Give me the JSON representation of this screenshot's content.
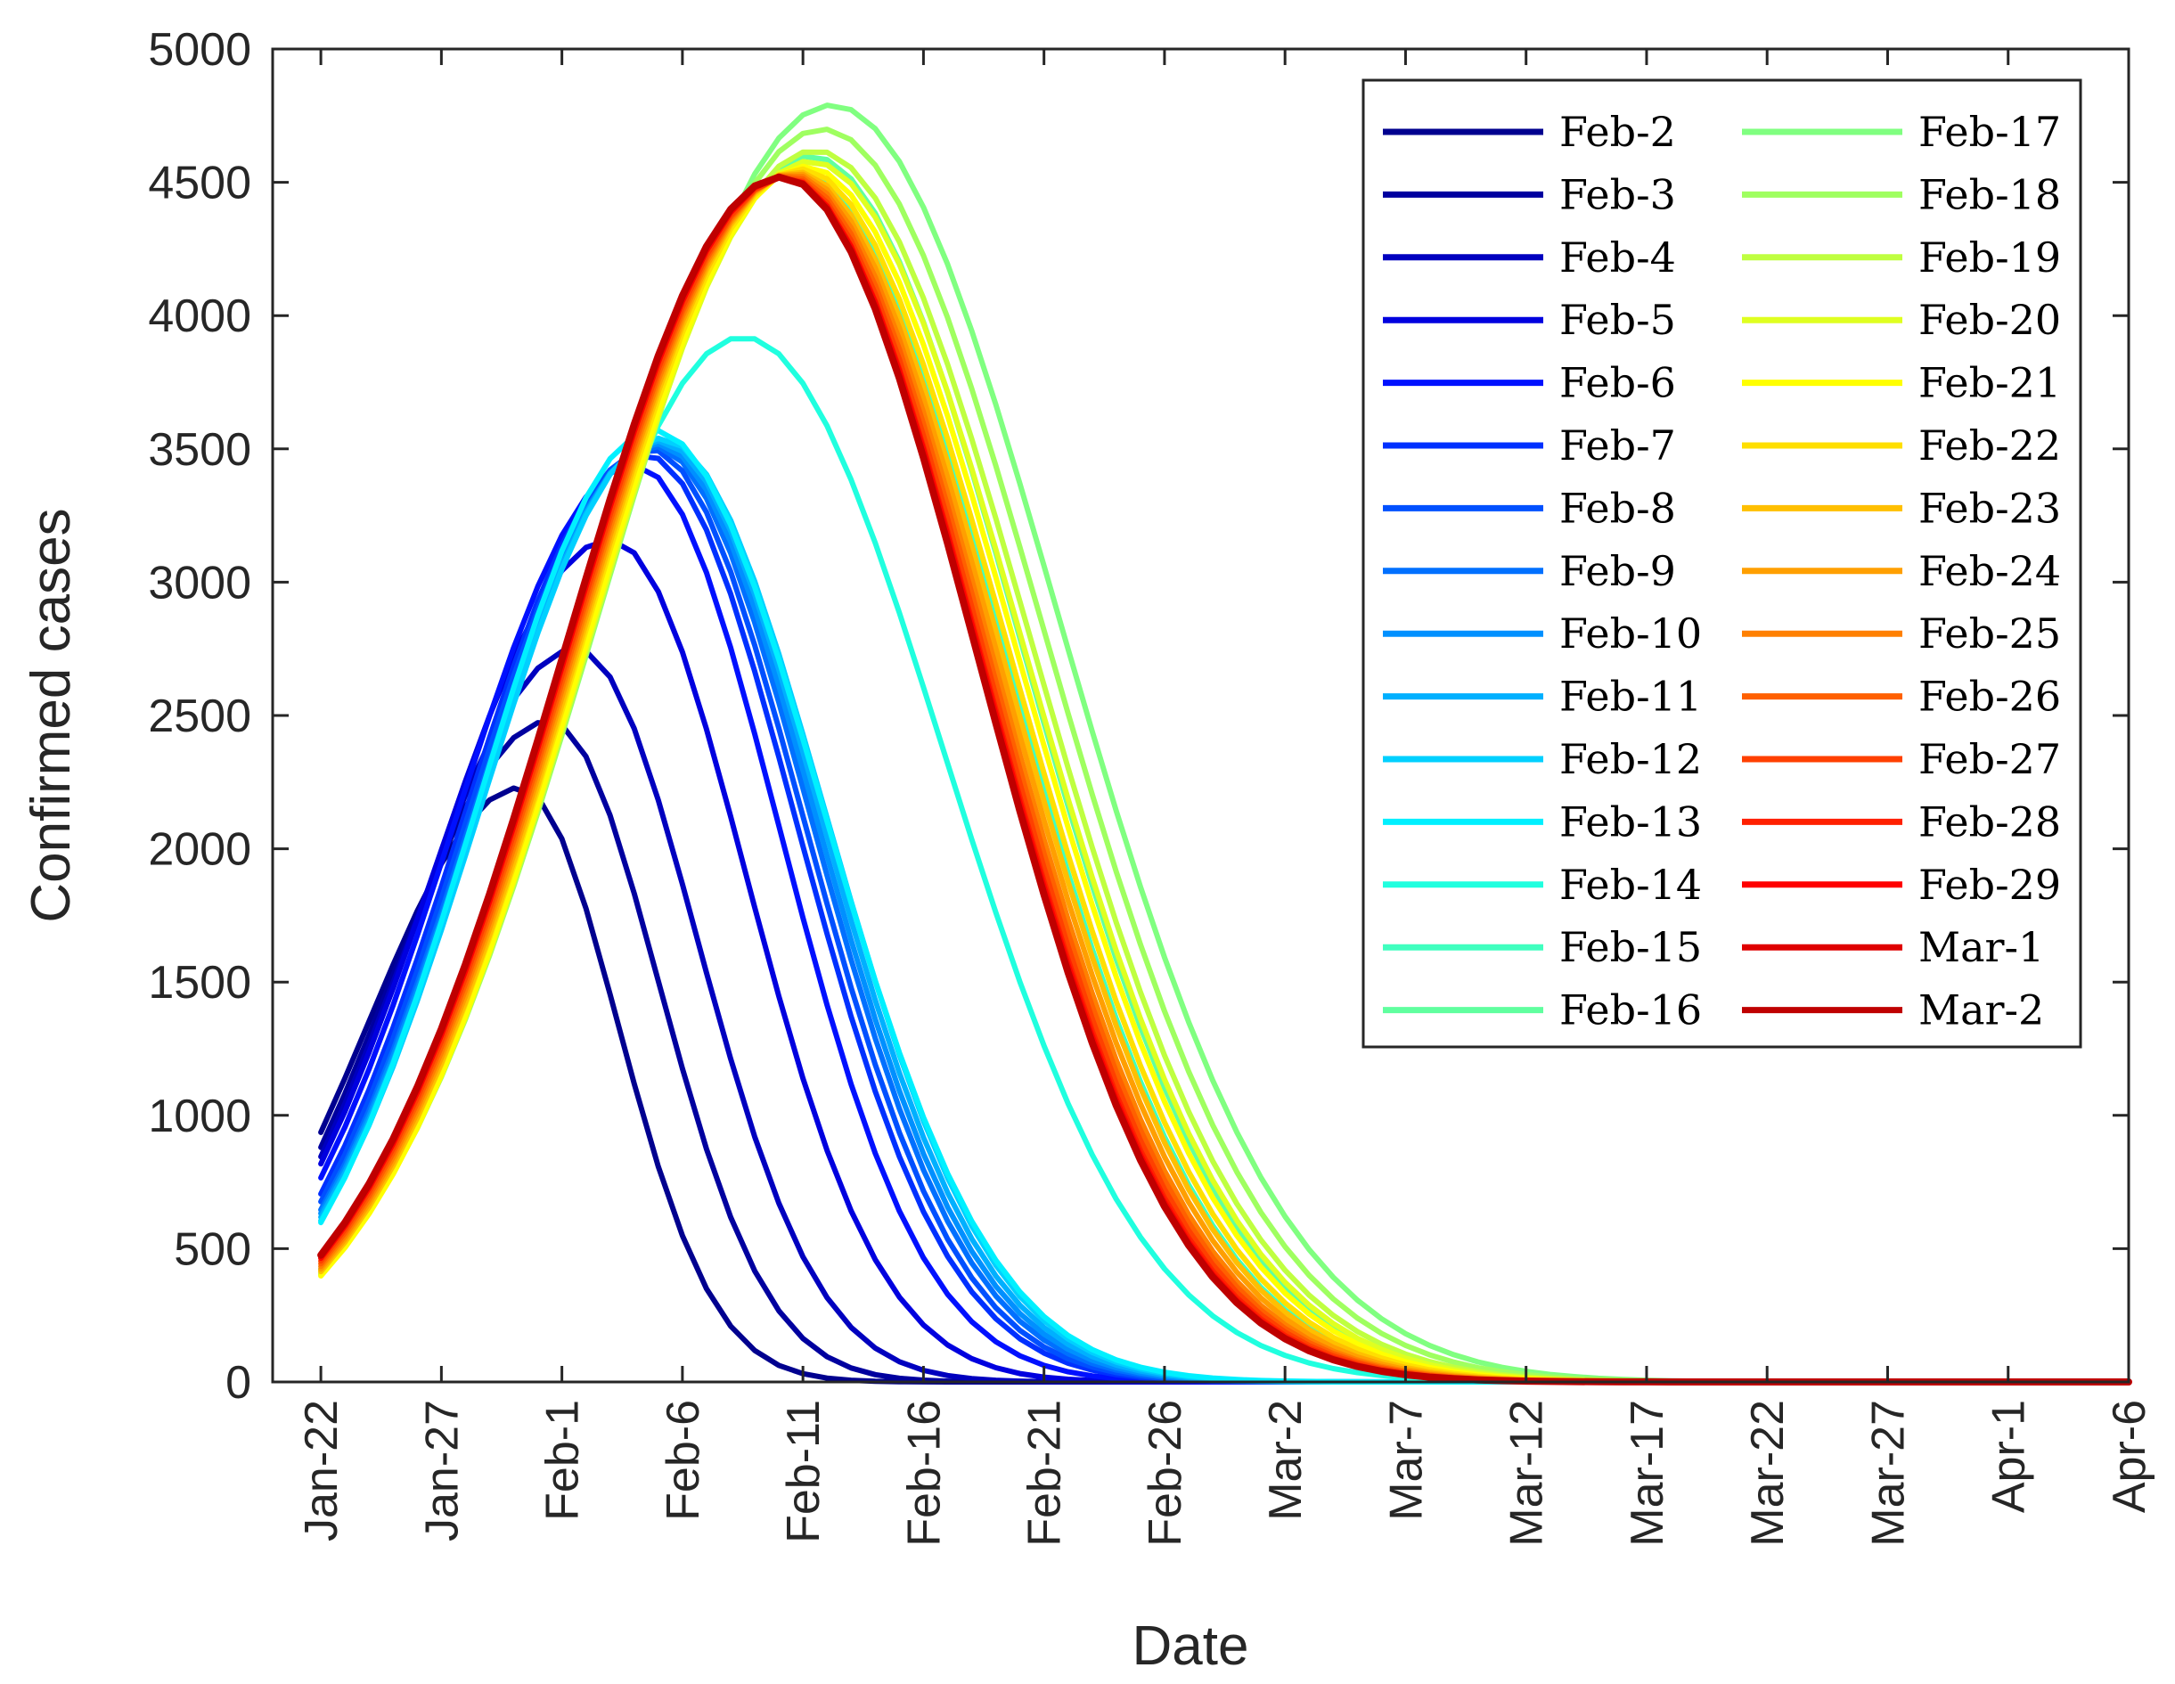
{
  "chart_data": {
    "type": "line",
    "title": "",
    "xlabel": "Date",
    "ylabel": "Confirmed cases",
    "x_start_label": "Jan-22",
    "x_days": 75,
    "xlim": [
      -2,
      75
    ],
    "ylim": [
      0,
      5000
    ],
    "grid": false,
    "legend_position": "top-right",
    "x_tick_days": [
      0,
      5,
      10,
      15,
      20,
      25,
      30,
      35,
      40,
      45,
      50,
      55,
      60,
      65,
      70,
      75
    ],
    "x_tick_labels": [
      "Jan-22",
      "Jan-27",
      "Feb-1",
      "Feb-6",
      "Feb-11",
      "Feb-16",
      "Feb-21",
      "Feb-26",
      "Mar-2",
      "Mar-7",
      "Mar-12",
      "Mar-17",
      "Mar-22",
      "Mar-27",
      "Apr-1",
      "Apr-6"
    ],
    "y_ticks": [
      0,
      500,
      1000,
      1500,
      2000,
      2500,
      3000,
      3500,
      4000,
      4500,
      5000
    ],
    "series": [
      {
        "name": "Feb-2",
        "color": "#00008f",
        "peak_day": 8.3,
        "peak_value": 2230,
        "width_left": 6.3,
        "width_right": 4.0
      },
      {
        "name": "Feb-3",
        "color": "#00009f",
        "peak_day": 9.5,
        "peak_value": 2480,
        "width_left": 6.6,
        "width_right": 4.5
      },
      {
        "name": "Feb-4",
        "color": "#0000bf",
        "peak_day": 10.6,
        "peak_value": 2750,
        "width_left": 6.9,
        "width_right": 5.0
      },
      {
        "name": "Feb-5",
        "color": "#0000df",
        "peak_day": 12.0,
        "peak_value": 3160,
        "width_left": 7.3,
        "width_right": 5.6
      },
      {
        "name": "Feb-6",
        "color": "#0010ff",
        "peak_day": 13.0,
        "peak_value": 3440,
        "width_left": 7.5,
        "width_right": 6.0
      },
      {
        "name": "Feb-7",
        "color": "#0030ff",
        "peak_day": 13.4,
        "peak_value": 3480,
        "width_left": 7.5,
        "width_right": 6.3
      },
      {
        "name": "Feb-8",
        "color": "#0050ff",
        "peak_day": 13.6,
        "peak_value": 3500,
        "width_left": 7.5,
        "width_right": 6.4
      },
      {
        "name": "Feb-9",
        "color": "#0070ff",
        "peak_day": 13.8,
        "peak_value": 3510,
        "width_left": 7.5,
        "width_right": 6.5
      },
      {
        "name": "Feb-10",
        "color": "#0090ff",
        "peak_day": 13.9,
        "peak_value": 3520,
        "width_left": 7.5,
        "width_right": 6.6
      },
      {
        "name": "Feb-11",
        "color": "#00b0ff",
        "peak_day": 14.0,
        "peak_value": 3530,
        "width_left": 7.5,
        "width_right": 6.7
      },
      {
        "name": "Feb-12",
        "color": "#00d0ff",
        "peak_day": 14.1,
        "peak_value": 3540,
        "width_left": 7.5,
        "width_right": 6.8
      },
      {
        "name": "Feb-13",
        "color": "#00f0ff",
        "peak_day": 13.8,
        "peak_value": 3570,
        "width_left": 7.3,
        "width_right": 7.0
      },
      {
        "name": "Feb-14",
        "color": "#20ffdf",
        "peak_day": 17.5,
        "peak_value": 3920,
        "width_left": 8.3,
        "width_right": 8.3
      },
      {
        "name": "Feb-15",
        "color": "#40ffbf",
        "peak_day": 19.8,
        "peak_value": 4550,
        "width_left": 9.0,
        "width_right": 8.5
      },
      {
        "name": "Feb-16",
        "color": "#60ff9f",
        "peak_day": 20.3,
        "peak_value": 4600,
        "width_left": 9.2,
        "width_right": 8.7
      },
      {
        "name": "Feb-17",
        "color": "#80ff80",
        "peak_day": 21.2,
        "peak_value": 4790,
        "width_left": 9.6,
        "width_right": 9.3
      },
      {
        "name": "Feb-18",
        "color": "#9fff60",
        "peak_day": 20.8,
        "peak_value": 4700,
        "width_left": 9.4,
        "width_right": 9.1
      },
      {
        "name": "Feb-19",
        "color": "#bfff40",
        "peak_day": 20.5,
        "peak_value": 4620,
        "width_left": 9.3,
        "width_right": 8.9
      },
      {
        "name": "Feb-20",
        "color": "#dfff20",
        "peak_day": 20.3,
        "peak_value": 4580,
        "width_left": 9.2,
        "width_right": 8.8
      },
      {
        "name": "Feb-21",
        "color": "#ffff00",
        "peak_day": 20.1,
        "peak_value": 4560,
        "width_left": 9.1,
        "width_right": 8.7
      },
      {
        "name": "Feb-22",
        "color": "#ffdf00",
        "peak_day": 19.9,
        "peak_value": 4550,
        "width_left": 9.1,
        "width_right": 8.6
      },
      {
        "name": "Feb-23",
        "color": "#ffbf00",
        "peak_day": 19.7,
        "peak_value": 4540,
        "width_left": 9.0,
        "width_right": 8.5
      },
      {
        "name": "Feb-24",
        "color": "#ff9f00",
        "peak_day": 19.6,
        "peak_value": 4535,
        "width_left": 9.0,
        "width_right": 8.4
      },
      {
        "name": "Feb-25",
        "color": "#ff8000",
        "peak_day": 19.5,
        "peak_value": 4530,
        "width_left": 9.0,
        "width_right": 8.3
      },
      {
        "name": "Feb-26",
        "color": "#ff6000",
        "peak_day": 19.4,
        "peak_value": 4525,
        "width_left": 9.0,
        "width_right": 8.25
      },
      {
        "name": "Feb-27",
        "color": "#ff4000",
        "peak_day": 19.3,
        "peak_value": 4520,
        "width_left": 9.0,
        "width_right": 8.2
      },
      {
        "name": "Feb-28",
        "color": "#ff2000",
        "peak_day": 19.2,
        "peak_value": 4520,
        "width_left": 9.0,
        "width_right": 8.15
      },
      {
        "name": "Feb-29",
        "color": "#ff0000",
        "peak_day": 19.2,
        "peak_value": 4520,
        "width_left": 9.0,
        "width_right": 8.1
      },
      {
        "name": "Mar-1",
        "color": "#df0000",
        "peak_day": 19.1,
        "peak_value": 4520,
        "width_left": 9.0,
        "width_right": 8.1
      },
      {
        "name": "Mar-2",
        "color": "#bf0000",
        "peak_day": 19.1,
        "peak_value": 4520,
        "width_left": 9.0,
        "width_right": 8.1
      }
    ]
  }
}
